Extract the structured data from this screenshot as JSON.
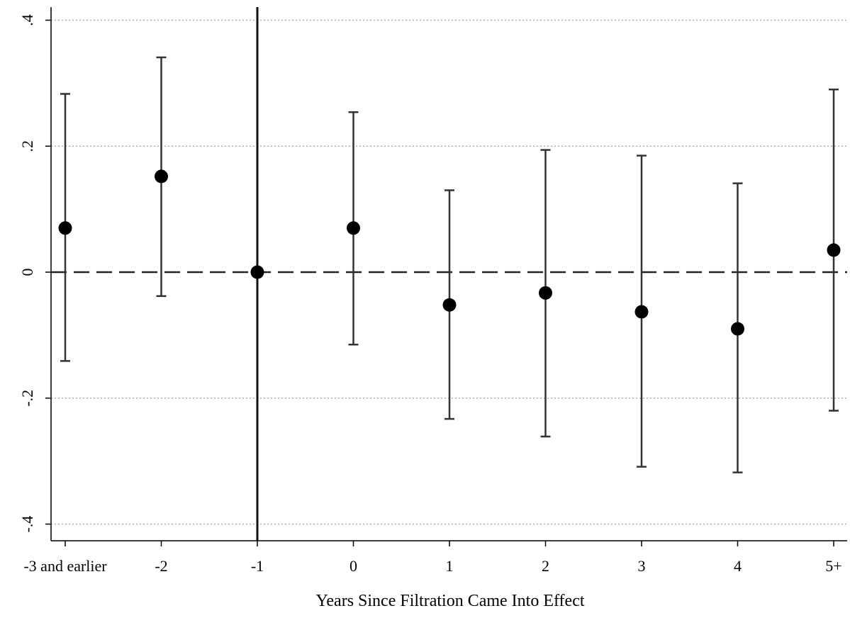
{
  "chart_data": {
    "type": "scatter",
    "title": "",
    "xlabel": "Years Since Filtration Came Into Effect",
    "ylabel": "",
    "categories": [
      "-3 and earlier",
      "-2",
      "-1",
      "0",
      "1",
      "2",
      "3",
      "4",
      "5+"
    ],
    "y_ticks": [
      {
        "value": 0.4,
        "label": ".4"
      },
      {
        "value": 0.2,
        "label": ".2"
      },
      {
        "value": 0,
        "label": "0"
      },
      {
        "value": -0.2,
        "label": "-.2"
      },
      {
        "value": -0.4,
        "label": "-.4"
      }
    ],
    "ylim": [
      -0.43,
      0.42
    ],
    "grid": "horizontal dotted",
    "reference_lines": {
      "horizontal_dashed_at": 0,
      "vertical_solid_at_category": "-1"
    },
    "series": [
      {
        "estimates": [
          0.07,
          0.152,
          0.0,
          0.07,
          -0.052,
          -0.033,
          -0.063,
          -0.09,
          0.035
        ],
        "ci_lower": [
          -0.141,
          -0.038,
          null,
          -0.115,
          -0.233,
          -0.261,
          -0.309,
          -0.318,
          -0.22
        ],
        "ci_upper": [
          0.283,
          0.341,
          null,
          0.254,
          0.13,
          0.194,
          0.185,
          0.141,
          0.29
        ]
      }
    ],
    "colors": {
      "marker": "#000000",
      "error_bar": "#333333",
      "grid": "#b0b0b0",
      "axis": "#000000"
    }
  }
}
